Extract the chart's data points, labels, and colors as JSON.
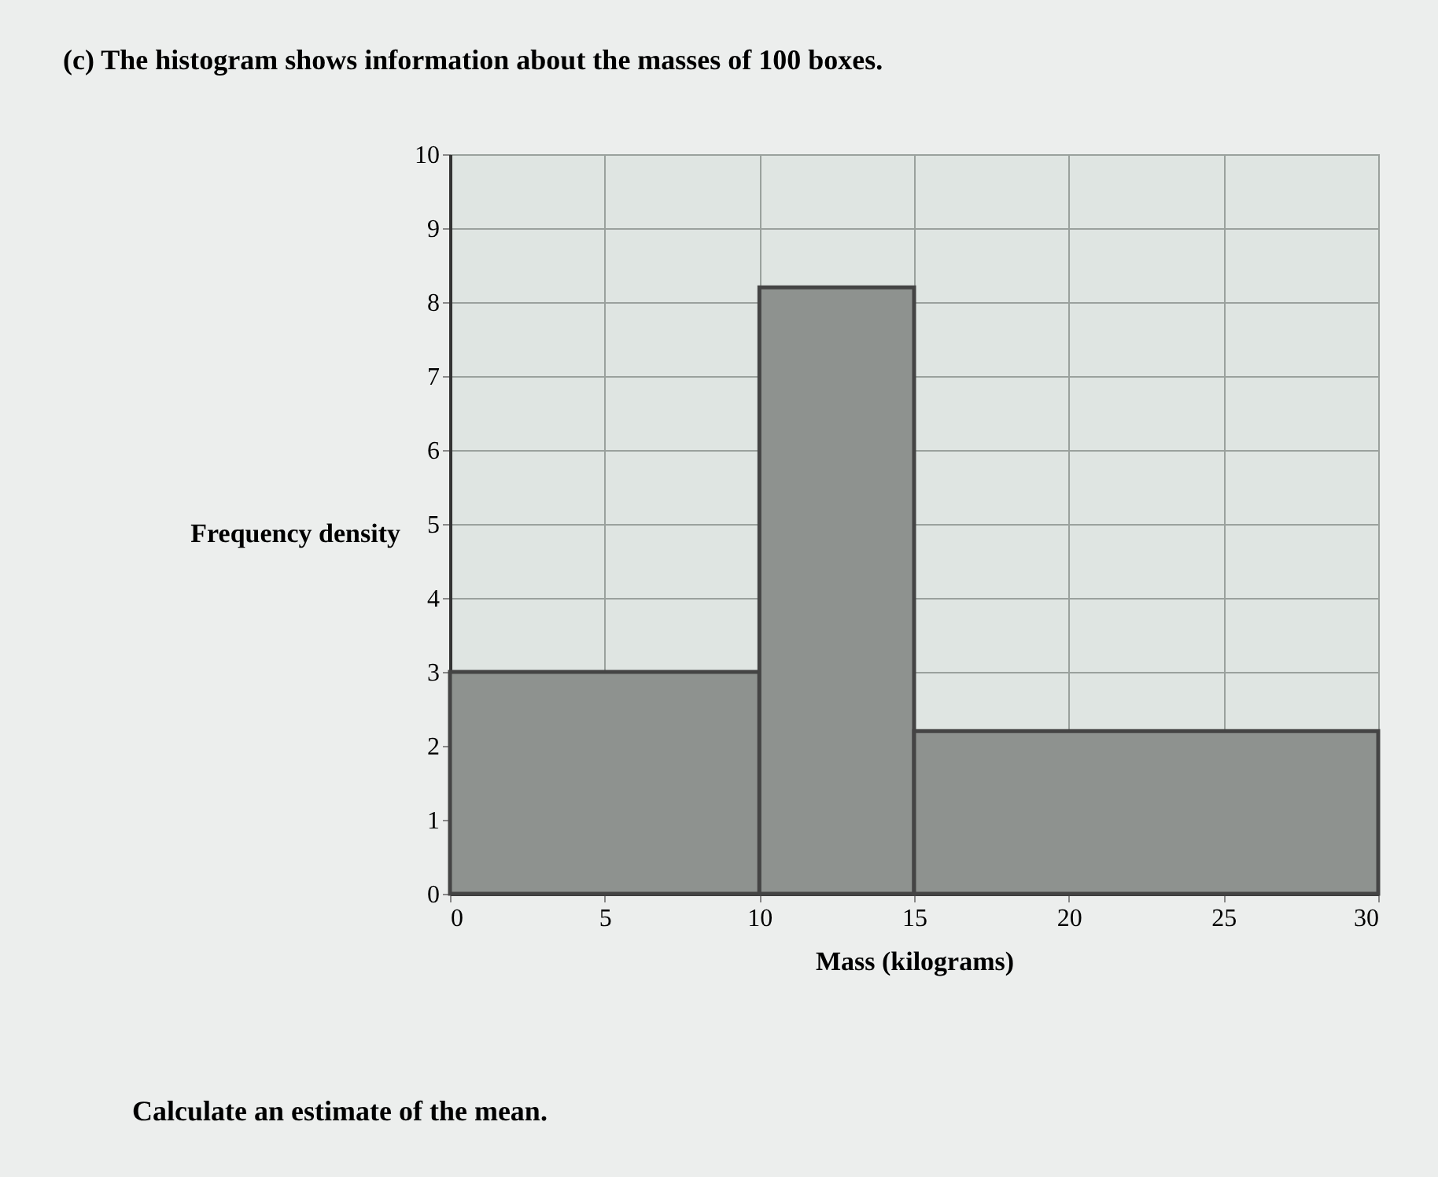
{
  "chart_data": {
    "type": "histogram",
    "title": "(c) The histogram shows information about the masses of 100 boxes.",
    "xlabel": "Mass (kilograms)",
    "ylabel": "Frequency density",
    "bins": [
      0,
      10,
      15,
      30
    ],
    "values": [
      3,
      8.2,
      2.2
    ],
    "color": "#8e928f",
    "xlim": [
      0,
      30
    ],
    "xticks": [
      0,
      5,
      10,
      15,
      20,
      25,
      30
    ],
    "ylim": [
      0,
      10
    ],
    "yticks": [
      0,
      1,
      2,
      3,
      4,
      5,
      6,
      7,
      8,
      9,
      10
    ],
    "grid": true,
    "annotations": [
      "Calculate an estimate of the mean."
    ]
  }
}
